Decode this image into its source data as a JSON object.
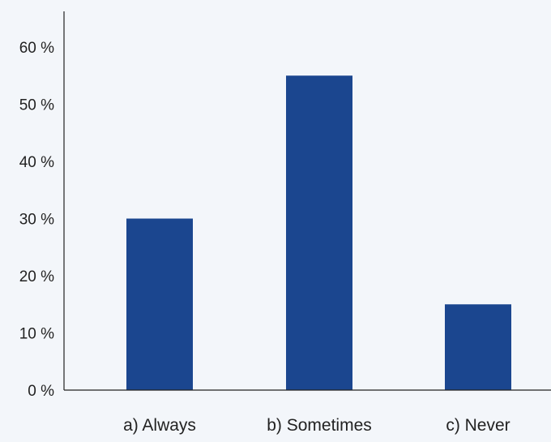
{
  "chart_data": {
    "type": "bar",
    "categories": [
      "a) Always",
      "b) Sometimes",
      "c) Never"
    ],
    "values": [
      30,
      55,
      15
    ],
    "y_ticks": [
      "0 %",
      "10 %",
      "20 %",
      "30 %",
      "40 %",
      "50 %",
      "60 %"
    ],
    "y_tick_values": [
      0,
      10,
      20,
      30,
      40,
      50,
      60
    ],
    "ylim": [
      0,
      66
    ],
    "title": "",
    "xlabel": "",
    "ylabel": "",
    "grid": false,
    "legend": "none",
    "bar_color": "#1b468f",
    "axis_color": "#222222",
    "background_color": "#f3f6fa"
  }
}
